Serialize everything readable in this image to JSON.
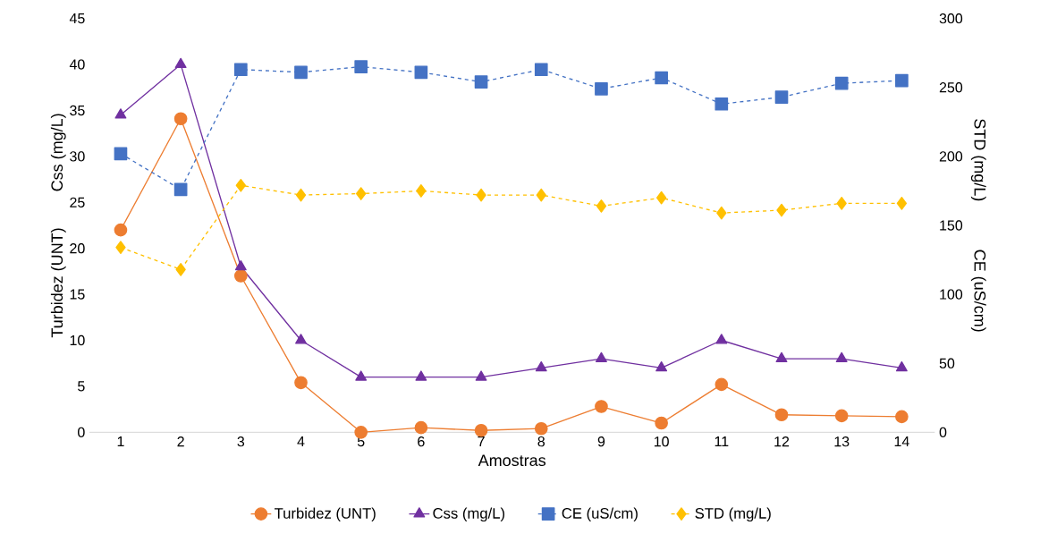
{
  "chart_data": {
    "type": "line",
    "xlabel": "Amostras",
    "ylabel": [
      "Turbidez (UNT)",
      "Css (mg/L)"
    ],
    "y2label": [
      "STD (mg/L)",
      "CE (uS/cm)"
    ],
    "categories": [
      "1",
      "2",
      "3",
      "4",
      "5",
      "6",
      "7",
      "8",
      "9",
      "10",
      "11",
      "12",
      "13",
      "14"
    ],
    "series": [
      {
        "name": "Turbidez (UNT)",
        "color": "#ED7D31",
        "marker": "circle",
        "line_style": "solid",
        "values": [
          22,
          34.1,
          17,
          5.4,
          0,
          0.5,
          0.2,
          0.4,
          2.8,
          1,
          5.2,
          1.9,
          1.8,
          1.7
        ]
      },
      {
        "name": "Css (mg/L)",
        "color": "#7030A0",
        "marker": "triangle",
        "line_style": "solid",
        "values": [
          34.5,
          40,
          18,
          10,
          6,
          6,
          6,
          7,
          8,
          7,
          10,
          8,
          8,
          7
        ]
      },
      {
        "name": "CE (uS/cm)",
        "color": "#4472C4",
        "marker": "square",
        "line_style": "dashed",
        "axis": "y2",
        "values": [
          202,
          176,
          263,
          261,
          265,
          261,
          254,
          263,
          249,
          257,
          238,
          243,
          253,
          255
        ]
      },
      {
        "name": "STD (mg/L)",
        "color": "#FFC000",
        "marker": "diamond",
        "line_style": "dashed",
        "axis": "y2",
        "values": [
          134,
          118,
          179,
          172,
          173,
          175,
          172,
          172,
          164,
          170,
          159,
          161,
          166,
          166
        ]
      }
    ],
    "ylim": [
      0,
      45
    ],
    "yticks": [
      0,
      5,
      10,
      15,
      20,
      25,
      30,
      35,
      40,
      45
    ],
    "y2lim": [
      0,
      300
    ],
    "y2ticks": [
      0,
      50,
      100,
      150,
      200,
      250,
      300
    ],
    "grid": false,
    "legend": "bottom"
  }
}
